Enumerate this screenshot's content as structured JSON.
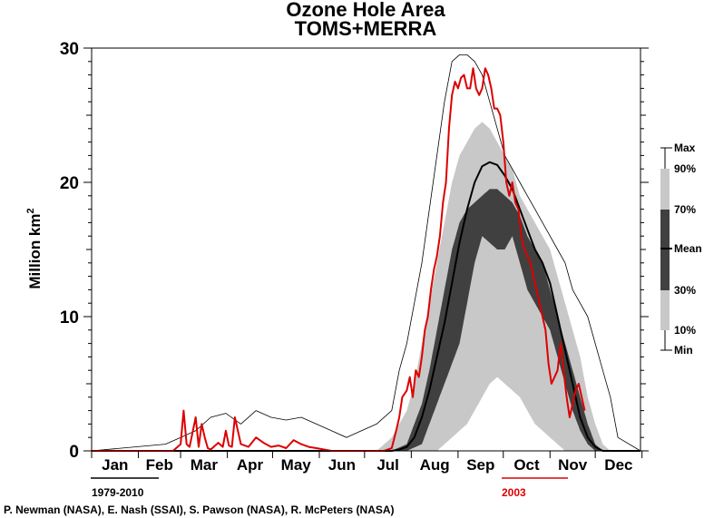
{
  "chart_data": {
    "type": "area",
    "title": "Ozone Hole Area",
    "subtitle": "TOMS+MERRA",
    "ylabel": "Million km",
    "ylabel_superscript": "2",
    "ylim": [
      0,
      30
    ],
    "yticks": [
      0,
      10,
      20,
      30
    ],
    "grid": false,
    "months": [
      "Jan",
      "Feb",
      "Mar",
      "Apr",
      "May",
      "Jun",
      "Jul",
      "Aug",
      "Sep",
      "Oct",
      "Nov",
      "Dec"
    ],
    "x_unit": "day of year",
    "xlim": [
      1,
      365
    ],
    "legend": {
      "position": "right",
      "labels": [
        "Max",
        "90%",
        "70%",
        "Mean",
        "30%",
        "10%",
        "Min"
      ]
    },
    "baseline_period": "1979-2010",
    "highlight_year": "2003",
    "credit": "P. Newman (NASA), E. Nash (SSAI), S. Pawson (NASA), R. McPeters (NASA)",
    "colors": {
      "band_10_90": "#c8c8c8",
      "band_30_70": "#404040",
      "mean": "#000000",
      "minmax": "#000000",
      "year_2003": "#dd0000",
      "min_line": "#5050c0"
    },
    "series": [
      {
        "name": "Max",
        "x": [
          1,
          50,
          60,
          70,
          80,
          90,
          100,
          110,
          120,
          130,
          140,
          150,
          160,
          170,
          180,
          190,
          200,
          205,
          210,
          215,
          220,
          225,
          230,
          235,
          240,
          245,
          250,
          255,
          260,
          265,
          270,
          275,
          280,
          285,
          290,
          295,
          300,
          305,
          310,
          315,
          320,
          325,
          330,
          335,
          340,
          345,
          350,
          365
        ],
        "y": [
          0,
          0.5,
          1.0,
          1.5,
          2.5,
          2.8,
          2.0,
          3.0,
          2.5,
          2.3,
          2.5,
          2.0,
          1.5,
          1.0,
          1.5,
          2.0,
          3,
          6,
          8,
          11,
          14,
          18,
          22,
          26,
          29,
          29.5,
          29.5,
          29,
          28,
          26,
          24,
          22,
          21,
          20,
          19,
          18,
          17,
          16,
          15,
          14,
          12,
          11,
          10,
          8,
          6,
          4,
          1,
          0
        ]
      },
      {
        "name": "90%",
        "x": [
          1,
          190,
          200,
          210,
          215,
          220,
          225,
          230,
          235,
          240,
          245,
          250,
          255,
          260,
          265,
          270,
          275,
          280,
          285,
          290,
          295,
          300,
          305,
          310,
          315,
          320,
          325,
          330,
          335,
          340,
          345,
          365
        ],
        "y": [
          0,
          0,
          1,
          3,
          5,
          8,
          11,
          14,
          17,
          20,
          22,
          23,
          24,
          24.5,
          24,
          23,
          22,
          21,
          19,
          18,
          17,
          16,
          15,
          13,
          11,
          9,
          7,
          4,
          2,
          0.5,
          0,
          0
        ]
      },
      {
        "name": "70%",
        "x": [
          1,
          200,
          210,
          215,
          220,
          225,
          230,
          235,
          240,
          245,
          250,
          255,
          260,
          265,
          270,
          275,
          280,
          285,
          290,
          295,
          300,
          305,
          310,
          315,
          320,
          325,
          330,
          335,
          340,
          345,
          365
        ],
        "y": [
          0,
          0,
          0.5,
          2,
          3.5,
          6,
          9,
          12,
          15,
          17,
          18,
          18.5,
          19,
          19.5,
          19.5,
          19,
          18.5,
          17.5,
          16,
          15,
          14,
          12,
          10,
          8,
          6,
          4,
          2,
          0.5,
          0,
          0,
          0
        ]
      },
      {
        "name": "Mean",
        "x": [
          1,
          200,
          205,
          210,
          215,
          220,
          225,
          230,
          235,
          240,
          245,
          250,
          255,
          260,
          265,
          270,
          275,
          280,
          285,
          290,
          295,
          300,
          305,
          310,
          315,
          320,
          325,
          330,
          335,
          340,
          345,
          365
        ],
        "y": [
          0,
          0,
          0.1,
          0.3,
          1.0,
          2.5,
          4.5,
          7.0,
          9.5,
          12.5,
          15.5,
          18,
          20,
          21.2,
          21.5,
          21.3,
          20.5,
          19.5,
          18,
          16.5,
          15,
          14,
          12.5,
          10,
          7.5,
          5,
          2.5,
          1,
          0.3,
          0,
          0,
          0
        ]
      },
      {
        "name": "30%",
        "x": [
          1,
          210,
          220,
          225,
          230,
          235,
          240,
          245,
          250,
          255,
          260,
          265,
          270,
          275,
          280,
          285,
          290,
          295,
          300,
          305,
          310,
          315,
          320,
          325,
          330,
          335,
          365
        ],
        "y": [
          0,
          0,
          0.5,
          2,
          3.5,
          5,
          6.5,
          8,
          11,
          14,
          16,
          15.5,
          15,
          15,
          16,
          14,
          12,
          11,
          10,
          9,
          7,
          5,
          3,
          1.5,
          0.5,
          0,
          0
        ]
      },
      {
        "name": "10%",
        "x": [
          1,
          230,
          235,
          240,
          245,
          250,
          255,
          260,
          265,
          270,
          275,
          280,
          285,
          290,
          295,
          300,
          305,
          310,
          315,
          320,
          325,
          330,
          365
        ],
        "y": [
          0,
          0,
          0.5,
          1,
          1.5,
          2,
          3,
          4,
          5,
          5.5,
          5,
          4.5,
          4,
          3,
          2,
          1.5,
          1,
          0.5,
          0,
          0,
          0,
          0,
          0
        ]
      },
      {
        "name": "Min",
        "x": [
          1,
          365
        ],
        "y": [
          0,
          0
        ]
      },
      {
        "name": "2003",
        "x": [
          1,
          55,
          60,
          62,
          64,
          66,
          70,
          72,
          74,
          76,
          78,
          80,
          85,
          88,
          90,
          92,
          94,
          96,
          100,
          105,
          110,
          115,
          120,
          125,
          130,
          135,
          140,
          145,
          150,
          155,
          160,
          165,
          170,
          175,
          180,
          185,
          190,
          195,
          200,
          203,
          205,
          207,
          210,
          212,
          214,
          216,
          218,
          220,
          222,
          224,
          226,
          228,
          230,
          232,
          234,
          236,
          238,
          240,
          242,
          244,
          246,
          248,
          250,
          252,
          254,
          256,
          258,
          260,
          262,
          264,
          266,
          268,
          270,
          272,
          274,
          276,
          278,
          280,
          282,
          284,
          286,
          288,
          290,
          292,
          294,
          296,
          298,
          300,
          302,
          304,
          306,
          308,
          310,
          312,
          314,
          316,
          318,
          320,
          322,
          324,
          326,
          328
        ],
        "y": [
          0,
          0,
          0.5,
          3.0,
          0.5,
          0.3,
          2.5,
          0.3,
          2.0,
          1.0,
          0.2,
          0.1,
          0.6,
          0.3,
          1.5,
          0.4,
          0.3,
          2.5,
          0.5,
          0.3,
          1.0,
          0.6,
          0.3,
          0.4,
          0.2,
          0.8,
          0.5,
          0.3,
          0.2,
          0.1,
          0,
          0,
          0,
          0,
          0,
          0,
          0,
          0,
          0.2,
          1.5,
          2.5,
          4.0,
          4.5,
          5.5,
          4.0,
          6.0,
          5.5,
          7.0,
          9.0,
          10.0,
          12.0,
          13.5,
          14.5,
          16.0,
          18.5,
          20.0,
          24.0,
          26.5,
          27.5,
          27.0,
          27.8,
          28.0,
          27.0,
          27.0,
          28.5,
          27.0,
          26.5,
          27.0,
          28.5,
          28.0,
          27.0,
          25.5,
          25.5,
          25.0,
          23.0,
          20.0,
          19.0,
          20.0,
          18.5,
          18.0,
          16.0,
          15.0,
          14.5,
          14.0,
          13.0,
          12.0,
          11.0,
          10.0,
          9.0,
          6.5,
          5.0,
          5.5,
          6.0,
          8.0,
          6.0,
          4.0,
          2.5,
          3.5,
          4.5,
          5.0,
          4.0,
          3.0
        ]
      }
    ]
  }
}
